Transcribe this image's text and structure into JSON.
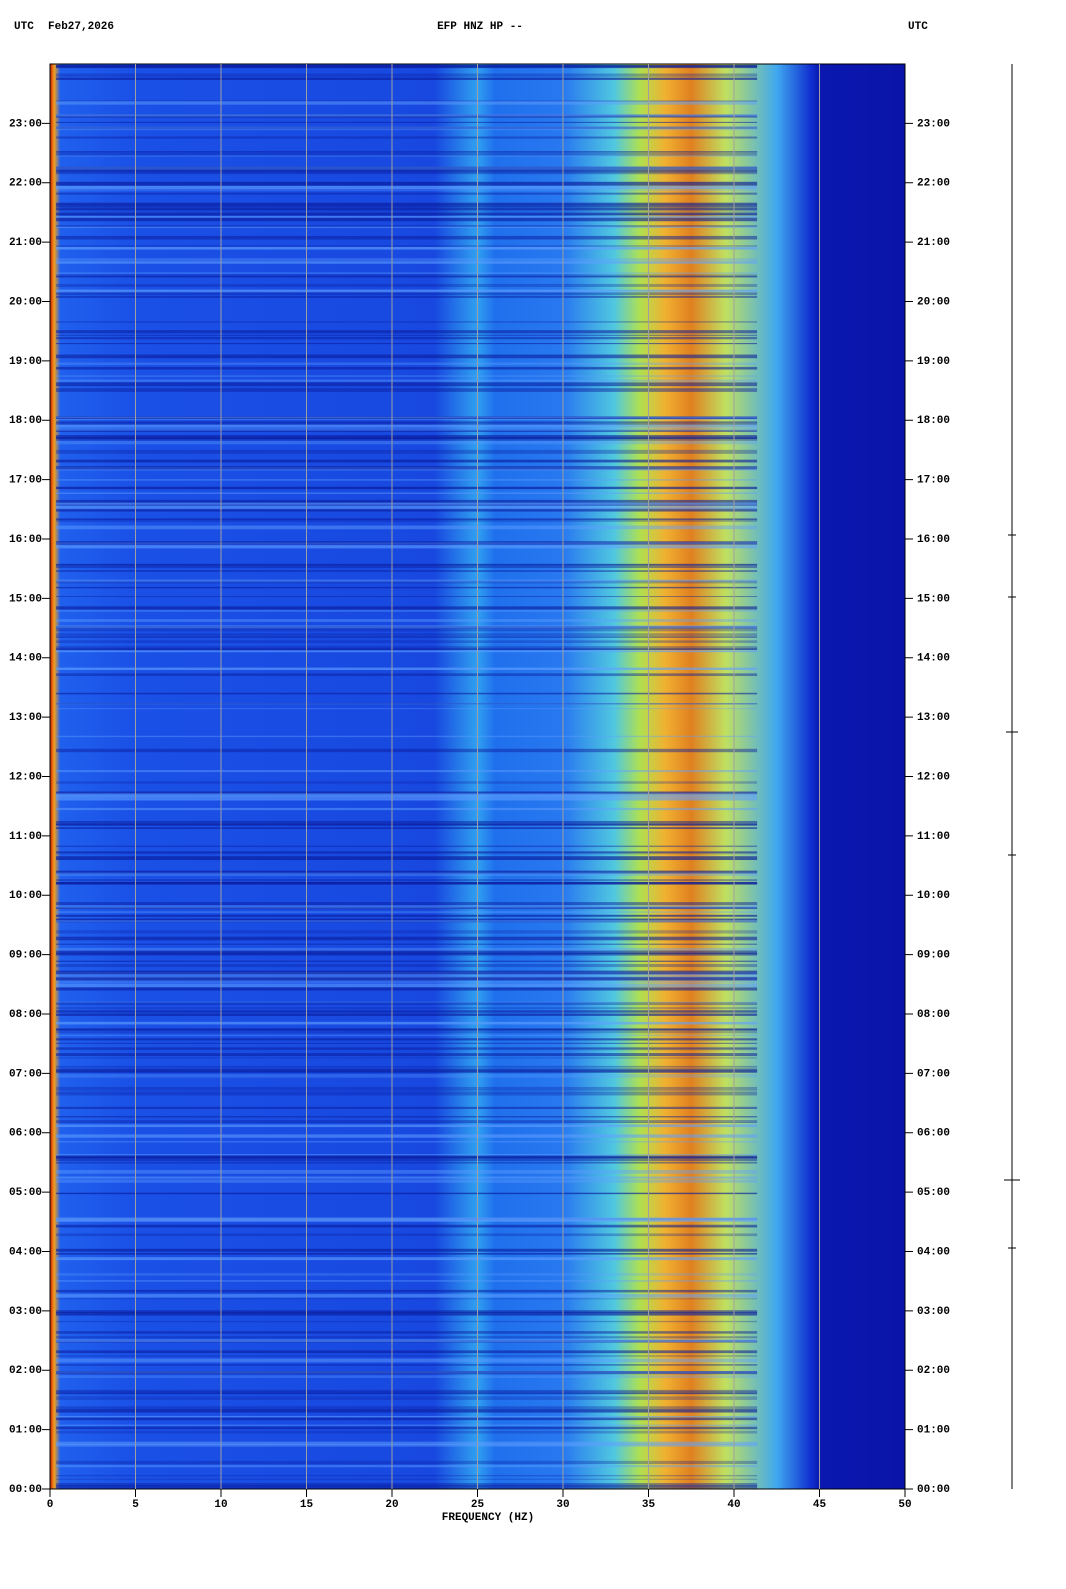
{
  "chart_data": {
    "type": "spectrogram",
    "title": "EFP HNZ HP --",
    "timezone_left": "UTC",
    "date": "Feb27,2026",
    "timezone_right": "UTC",
    "xlabel": "FREQUENCY (HZ)",
    "xlim": [
      0,
      50
    ],
    "xticks": [
      0,
      5,
      10,
      15,
      20,
      25,
      30,
      35,
      40,
      45,
      50
    ],
    "ylim": [
      0,
      24
    ],
    "yticks": [
      {
        "value": 0,
        "label": "00:00"
      },
      {
        "value": 1,
        "label": "01:00"
      },
      {
        "value": 2,
        "label": "02:00"
      },
      {
        "value": 3,
        "label": "03:00"
      },
      {
        "value": 4,
        "label": "04:00"
      },
      {
        "value": 5,
        "label": "05:00"
      },
      {
        "value": 6,
        "label": "06:00"
      },
      {
        "value": 7,
        "label": "07:00"
      },
      {
        "value": 8,
        "label": "08:00"
      },
      {
        "value": 9,
        "label": "09:00"
      },
      {
        "value": 10,
        "label": "10:00"
      },
      {
        "value": 11,
        "label": "11:00"
      },
      {
        "value": 12,
        "label": "12:00"
      },
      {
        "value": 13,
        "label": "13:00"
      },
      {
        "value": 14,
        "label": "14:00"
      },
      {
        "value": 15,
        "label": "15:00"
      },
      {
        "value": 16,
        "label": "16:00"
      },
      {
        "value": 17,
        "label": "17:00"
      },
      {
        "value": 18,
        "label": "18:00"
      },
      {
        "value": 19,
        "label": "19:00"
      },
      {
        "value": 20,
        "label": "20:00"
      },
      {
        "value": 21,
        "label": "21:00"
      },
      {
        "value": 22,
        "label": "22:00"
      },
      {
        "value": 23,
        "label": "23:00"
      }
    ],
    "grid": true,
    "grid_color": "#a0a0a0"
  }
}
